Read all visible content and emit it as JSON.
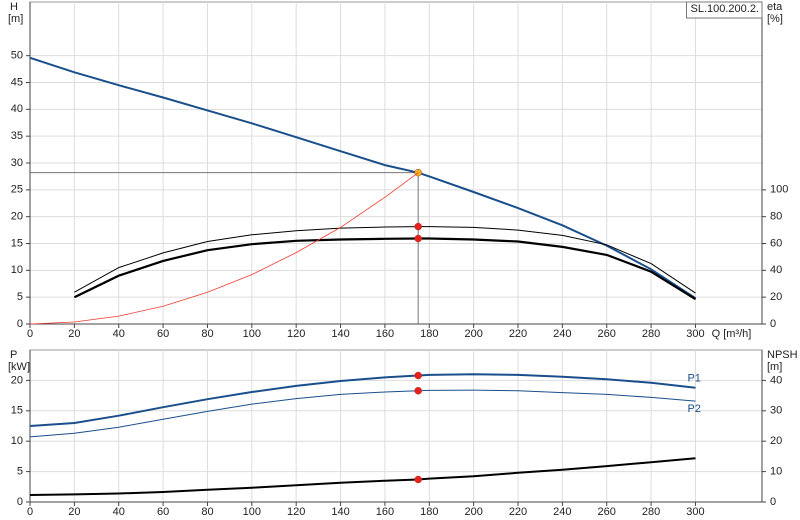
{
  "chart_data": [
    {
      "type": "line",
      "title": "SL.100.200.2.",
      "y_label": "H",
      "y_unit": "[m]",
      "y2_label": "eta",
      "y2_unit": "[%]",
      "x_label": "Q [m³/h]",
      "xlim": [
        0,
        330
      ],
      "ylim": [
        0,
        60
      ],
      "y2lim": [
        0,
        240
      ],
      "grid": true,
      "xticks": [
        0,
        20,
        40,
        60,
        80,
        100,
        120,
        140,
        160,
        180,
        200,
        220,
        240,
        260,
        280,
        300
      ],
      "yticks": [
        0,
        5,
        10,
        15,
        20,
        25,
        30,
        35,
        40,
        45,
        50
      ],
      "y2ticks": [
        0,
        20,
        40,
        60,
        80,
        100
      ],
      "operating_point_x": 175,
      "x": [
        0,
        20,
        40,
        60,
        80,
        100,
        120,
        140,
        160,
        175,
        180,
        200,
        220,
        240,
        260,
        280,
        300
      ],
      "series": [
        {
          "color": "#1a4f8b",
          "width": 2,
          "marker_color": "#f2b21b",
          "values": [
            49.6,
            46.9,
            44.5,
            42.2,
            39.8,
            37.4,
            34.8,
            32.2,
            29.6,
            28.2,
            27.5,
            24.6,
            21.6,
            18.4,
            14.6,
            10.2,
            4.8
          ]
        },
        {
          "color": "#000000",
          "width": 1,
          "axis": "y2",
          "marker_color": "#e8201a",
          "values": [
            null,
            23.7,
            42,
            53,
            61.5,
            66.5,
            69.5,
            71.5,
            72.3,
            72.6,
            72.6,
            72,
            70,
            66,
            59,
            45,
            23
          ]
        },
        {
          "color": "#000000",
          "width": 2.2,
          "axis": "y2",
          "marker_color": "#e8201a",
          "values": [
            null,
            20,
            36,
            47,
            55,
            59.5,
            62,
            63,
            63.5,
            63.7,
            63.7,
            63,
            61.5,
            57.5,
            51.5,
            39,
            18.5
          ]
        },
        {
          "color": "#f03c30",
          "width": 0.8,
          "values": [
            0,
            0.37,
            1.47,
            3.3,
            5.9,
            9.2,
            13.3,
            18.0,
            23.6,
            28.2,
            null,
            null,
            null,
            null,
            null,
            null,
            null
          ]
        }
      ]
    },
    {
      "type": "line",
      "y_label": "P",
      "y_unit": "[kW]",
      "y2_label": "NPSH",
      "y2_unit": "[m]",
      "xlim": [
        0,
        330
      ],
      "ylim": [
        0,
        25
      ],
      "y2lim": [
        0,
        50
      ],
      "grid": true,
      "xticks": [
        0,
        20,
        40,
        60,
        80,
        100,
        120,
        140,
        160,
        180,
        200,
        220,
        240,
        260,
        280,
        300
      ],
      "yticks": [
        0,
        5,
        10,
        15,
        20
      ],
      "y2ticks": [
        0,
        10,
        20,
        30,
        40
      ],
      "operating_point_x": 175,
      "x": [
        0,
        20,
        40,
        60,
        80,
        100,
        120,
        140,
        160,
        175,
        180,
        200,
        220,
        240,
        260,
        280,
        300
      ],
      "series": [
        {
          "name": "P1",
          "color": "#1a4f8b",
          "width": 2,
          "marker_color": "#e8201a",
          "values": [
            12.5,
            13.0,
            14.2,
            15.6,
            16.9,
            18.1,
            19.1,
            19.9,
            20.5,
            20.8,
            20.9,
            21.0,
            20.9,
            20.6,
            20.2,
            19.6,
            18.8
          ]
        },
        {
          "name": "P2",
          "color": "#1a4f8b",
          "width": 1,
          "marker_color": "#e8201a",
          "values": [
            10.7,
            11.3,
            12.3,
            13.6,
            14.9,
            16.1,
            17.0,
            17.7,
            18.1,
            18.3,
            18.35,
            18.4,
            18.3,
            18.0,
            17.7,
            17.2,
            16.6
          ]
        },
        {
          "color": "#000000",
          "width": 2,
          "axis": "y2",
          "marker_color": "#e8201a",
          "values": [
            2.3,
            2.5,
            2.8,
            3.3,
            4.0,
            4.7,
            5.5,
            6.3,
            7.0,
            7.4,
            7.7,
            8.5,
            9.6,
            10.6,
            11.8,
            13.1,
            14.4
          ]
        }
      ]
    }
  ]
}
